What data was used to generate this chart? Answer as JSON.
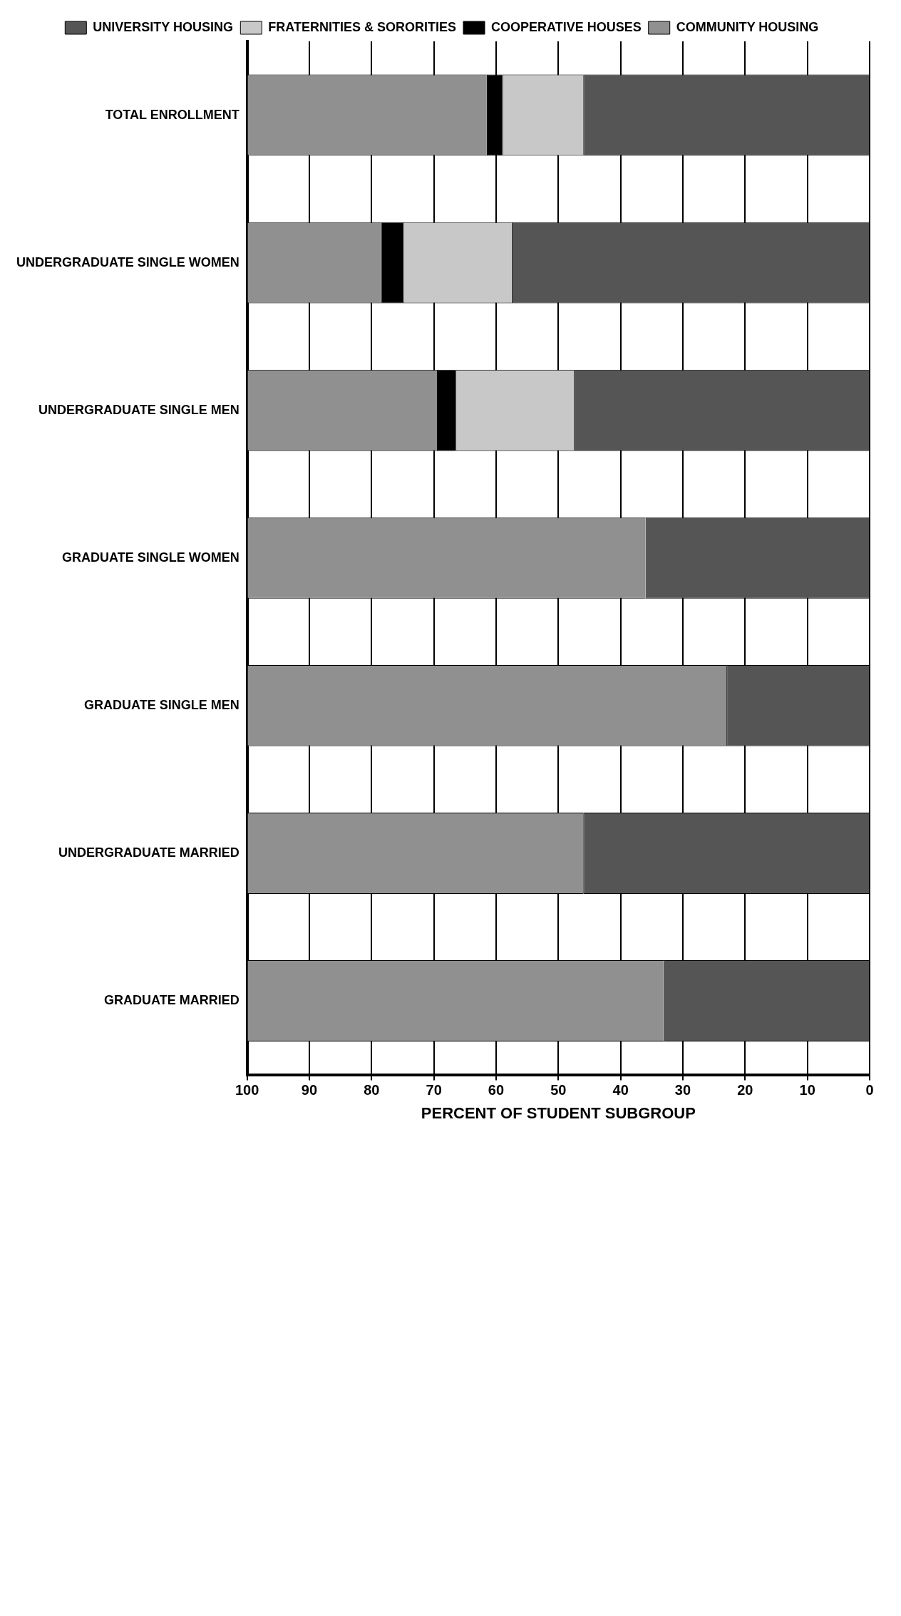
{
  "chart_data": {
    "type": "bar",
    "orientation": "horizontal",
    "stacked": true,
    "xlabel": "PERCENT OF STUDENT SUBGROUP",
    "categories": [
      "TOTAL ENROLLMENT",
      "UNDERGRADUATE SINGLE WOMEN",
      "UNDERGRADUATE SINGLE MEN",
      "GRADUATE SINGLE WOMEN",
      "GRADUATE SINGLE MEN",
      "UNDERGRADUATE MARRIED",
      "GRADUATE MARRIED"
    ],
    "series": [
      {
        "name": "UNIVERSITY HOUSING",
        "color": "#555555",
        "values": [
          46,
          57.5,
          47.5,
          36,
          23,
          46,
          33
        ]
      },
      {
        "name": "FRATERNITIES & SORORITIES",
        "color": "#c8c8c8",
        "values": [
          13,
          17.5,
          19,
          0,
          0,
          0,
          0
        ]
      },
      {
        "name": "COOPERATIVE HOUSES",
        "color": "#000000",
        "values": [
          2.5,
          3.5,
          3,
          0,
          0,
          0,
          0
        ]
      },
      {
        "name": "COMMUNITY HOUSING",
        "color": "#909090",
        "values": [
          38.5,
          21.5,
          30.5,
          64,
          77,
          54,
          67
        ]
      }
    ],
    "xlim": [
      100,
      0
    ],
    "xticks": [
      100,
      90,
      80,
      70,
      60,
      50,
      40,
      30,
      20,
      10,
      0
    ],
    "grid": "x",
    "legend": "top"
  }
}
